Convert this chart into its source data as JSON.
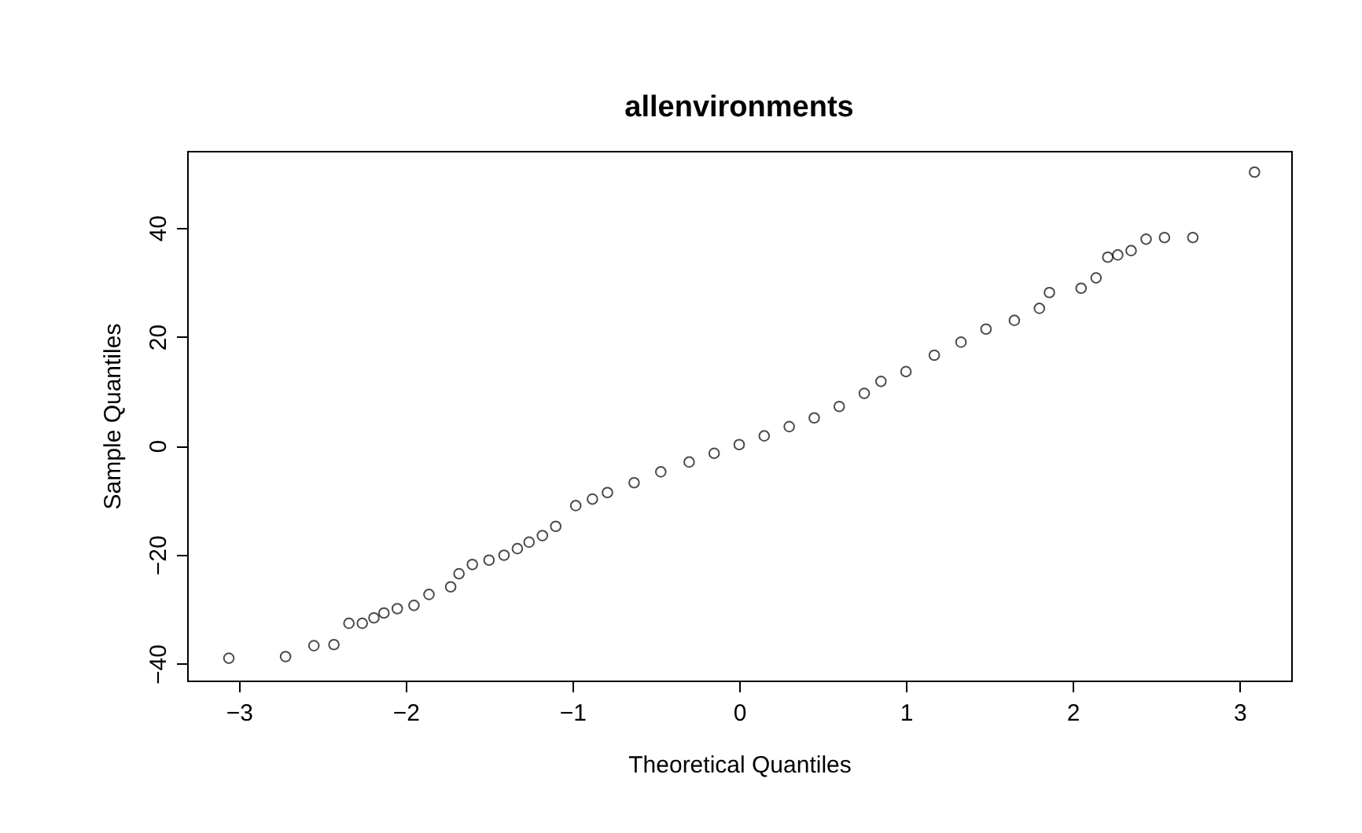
{
  "chart_data": {
    "type": "scatter",
    "title": "allenvironments",
    "xlabel": "Theoretical Quantiles",
    "ylabel": "Sample Quantiles",
    "x": [
      -3.06,
      -2.72,
      -2.55,
      -2.43,
      -2.34,
      -2.26,
      -2.19,
      -2.13,
      -2.05,
      -1.95,
      -1.86,
      -1.73,
      -1.68,
      -1.6,
      -1.5,
      -1.41,
      -1.33,
      -1.26,
      -1.18,
      -1.1,
      -0.98,
      -0.88,
      -0.79,
      -0.63,
      -0.47,
      -0.3,
      -0.15,
      0,
      0.15,
      0.3,
      0.45,
      0.6,
      0.75,
      0.85,
      1.0,
      1.17,
      1.33,
      1.48,
      1.65,
      1.8,
      1.86,
      2.05,
      2.14,
      2.21,
      2.27,
      2.35,
      2.44,
      2.55,
      2.72,
      3.09
    ],
    "series": [
      {
        "color": "#000000",
        "values": [
          -39.0,
          -38.7,
          -36.7,
          -36.5,
          -32.6,
          -32.6,
          -31.6,
          -30.7,
          -29.9,
          -29.3,
          -27.3,
          -25.9,
          -23.5,
          -21.8,
          -21.0,
          -20.1,
          -18.9,
          -17.7,
          -16.5,
          -14.8,
          -11.0,
          -9.8,
          -8.6,
          -6.8,
          -4.8,
          -3.0,
          -1.4,
          0.2,
          1.8,
          3.5,
          5.1,
          7.2,
          9.6,
          11.8,
          13.6,
          16.6,
          19.0,
          21.4,
          23.0,
          25.2,
          28.1,
          28.9,
          30.8,
          34.6,
          35.0,
          35.8,
          37.9,
          38.2,
          38.2,
          50.2
        ]
      }
    ],
    "xlim": [
      -3.31,
      3.31
    ],
    "ylim": [
      -43.1,
      54.1
    ],
    "xticks": [
      -3,
      -2,
      -1,
      0,
      1,
      2,
      3
    ],
    "yticks": [
      -40,
      -20,
      0,
      20,
      40
    ],
    "marker": "circle",
    "grid": false
  }
}
